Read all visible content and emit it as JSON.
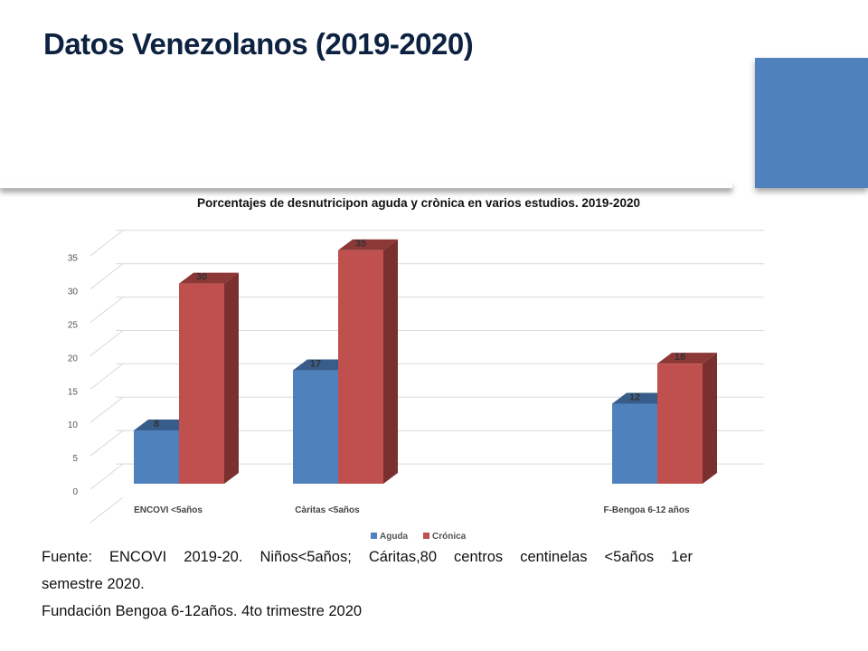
{
  "slide": {
    "title": "Datos Venezolanos (2019-2020)",
    "colors": {
      "accent_block": "#4f81bd",
      "title": "#0d2240"
    },
    "source_lines": [
      "Fuente: ENCOVI 2019-20. Niños<5años; Cáritas,80 centros centinelas <5años 1er",
      "semestre 2020.",
      "Fundación Bengoa 6-12años. 4to trimestre 2020"
    ]
  },
  "chart_data": {
    "type": "bar",
    "style": "3d-clustered-column",
    "title": "Porcentajes de desnutricipon aguda y crònica  en varios estudios. 2019-2020",
    "categories": [
      "ENCOVI <5años",
      "Càritas <5años",
      "",
      "F-Bengoa 6-12 años"
    ],
    "series": [
      {
        "name": "Aguda",
        "color": "#4f81bd",
        "values": [
          8,
          17,
          null,
          12
        ]
      },
      {
        "name": "Crónica",
        "color": "#c0504d",
        "values": [
          30,
          35,
          null,
          18
        ]
      }
    ],
    "yticks": [
      0,
      5,
      10,
      15,
      20,
      25,
      30,
      35
    ],
    "ylim": [
      0,
      40
    ],
    "grid": true,
    "legend": "bottom",
    "xlabel": "",
    "ylabel": ""
  }
}
